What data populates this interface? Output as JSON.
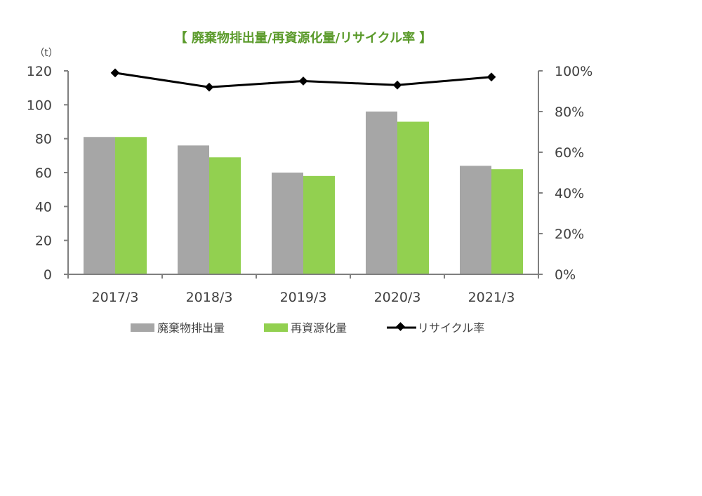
{
  "chart_data": {
    "type": "bar",
    "title": "【 廃棄物排出量/再資源化量/リサイクル率 】",
    "y_unit_label": "（t）",
    "categories": [
      "2017/3",
      "2018/3",
      "2019/3",
      "2020/3",
      "2021/3"
    ],
    "series": [
      {
        "name": "廃棄物排出量",
        "type": "bar",
        "axis": "left",
        "values": [
          81,
          76,
          60,
          96,
          64
        ]
      },
      {
        "name": "再資源化量",
        "type": "bar",
        "axis": "left",
        "values": [
          81,
          69,
          58,
          90,
          62
        ]
      },
      {
        "name": "リサイクル率",
        "type": "line",
        "axis": "right",
        "values": [
          99,
          92,
          95,
          93,
          97
        ]
      }
    ],
    "ylim_left": [
      0,
      120
    ],
    "yticks_left": [
      "0",
      "20",
      "40",
      "60",
      "80",
      "100",
      "120"
    ],
    "ylim_right": [
      0,
      100
    ],
    "yticks_right": [
      "0%",
      "20%",
      "40%",
      "60%",
      "80%",
      "100%"
    ],
    "grid": false,
    "legend_position": "bottom",
    "colors": {
      "title": "#5a9a2a",
      "waste": "#a6a6a6",
      "recycled": "#92d050",
      "rate": "#000000",
      "axis": "#7f7f7f"
    }
  }
}
